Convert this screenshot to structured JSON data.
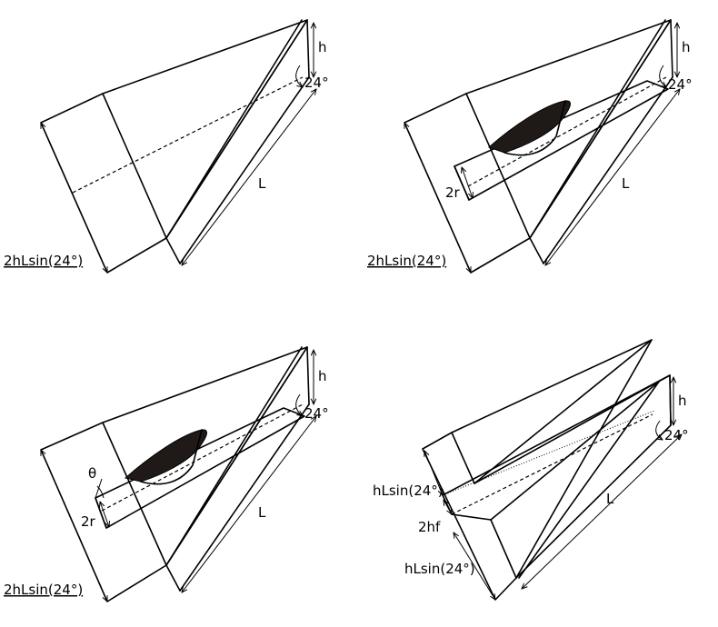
{
  "panels": [
    {
      "labels": {
        "h": "h",
        "angle": "24°",
        "L": "L",
        "base": "2hLsin(24°)"
      }
    },
    {
      "labels": {
        "h": "h",
        "angle": "24°",
        "L": "L",
        "base": "2hLsin(24°)",
        "r": "2r"
      }
    },
    {
      "labels": {
        "h": "h",
        "angle": "24°",
        "L": "L",
        "base": "2hLsin(24°)",
        "r": "2r",
        "theta": "θ"
      }
    },
    {
      "labels": {
        "h": "h",
        "angle": "24°",
        "L": "L",
        "top": "hLsin(24°)",
        "mid": "2hf",
        "bottom": "hLsin(24°)"
      }
    }
  ]
}
